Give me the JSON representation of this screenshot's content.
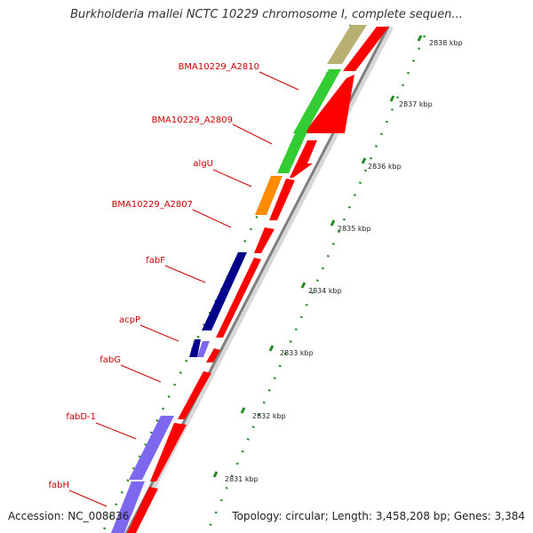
{
  "title": "Burkholderia mallei NCTC 10229 chromosome I, complete sequen...",
  "footer": {
    "accession": "Accession: NC_008836",
    "topology": "Topology: circular; Length: 3,458,208 bp; Genes: 3,384"
  },
  "ticks": [
    {
      "label": "2838 kbp"
    },
    {
      "label": "2837 kbp"
    },
    {
      "label": "2836 kbp"
    },
    {
      "label": "2835 kbp"
    },
    {
      "label": "2834 kbp"
    },
    {
      "label": "2833 kbp"
    },
    {
      "label": "2832 kbp"
    },
    {
      "label": "2831 kbp"
    }
  ],
  "gene_labels": [
    {
      "name": "BMA10229_A2810"
    },
    {
      "name": "BMA10229_A2809"
    },
    {
      "name": "algU"
    },
    {
      "name": "BMA10229_A2807"
    },
    {
      "name": "fabF"
    },
    {
      "name": "acpP"
    },
    {
      "name": "fabG"
    },
    {
      "name": "fabD-1"
    },
    {
      "name": "fabH"
    }
  ],
  "colors": {
    "gene_red": "#ff0000",
    "green": "#33cc33",
    "orange": "#ff8c00",
    "navy": "#00008b",
    "purple": "#7b68ee",
    "khaki": "#b8b070",
    "label_red": "#cc0000",
    "tick_green": "#006400",
    "backbone": "#808080"
  }
}
